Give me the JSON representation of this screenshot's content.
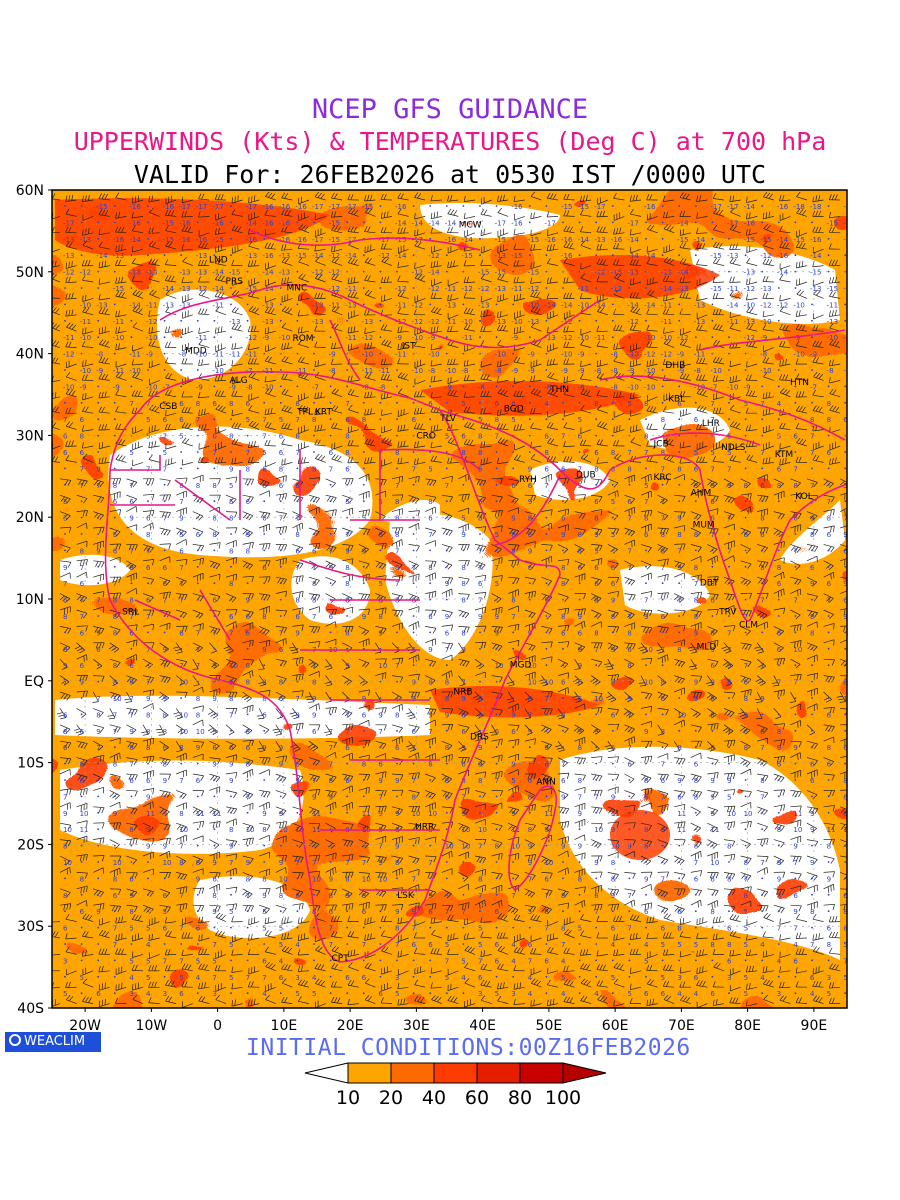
{
  "titles": {
    "line1": "NCEP GFS GUIDANCE",
    "line2": "UPPERWINDS (Kts) & TEMPERATURES (Deg C) at 700 hPa",
    "line3": "VALID For: 26FEB2026 at 0530 IST /0000 UTC"
  },
  "initial_conditions": "INITIAL CONDITIONS:00Z16FEB2026",
  "logo": {
    "text": "WEACLIM",
    "icon": "weaclim-logo-icon"
  },
  "colors": {
    "title1": "#8a2be2",
    "title2": "#e8178a",
    "border": "#e8178a",
    "barb": "#222222",
    "temp": "#2a3fd8"
  },
  "map": {
    "lat_labels": [
      "60N",
      "50N",
      "40N",
      "30N",
      "20N",
      "10N",
      "EQ",
      "10S",
      "20S",
      "30S",
      "40S"
    ],
    "lon_labels": [
      "20W",
      "10W",
      "0",
      "10E",
      "20E",
      "30E",
      "40E",
      "50E",
      "60E",
      "70E",
      "80E",
      "90E"
    ],
    "stations": [
      {
        "code": "MCW",
        "lon": 37.6,
        "lat": 55.8
      },
      {
        "code": "LND",
        "lon": -0.1,
        "lat": 51.5
      },
      {
        "code": "PRS",
        "lon": 2.4,
        "lat": 48.9
      },
      {
        "code": "MNC",
        "lon": 11.6,
        "lat": 48.1
      },
      {
        "code": "ROM",
        "lon": 12.5,
        "lat": 41.9
      },
      {
        "code": "MDD",
        "lon": -3.7,
        "lat": 40.4
      },
      {
        "code": "IST",
        "lon": 29.0,
        "lat": 41.0
      },
      {
        "code": "ALG",
        "lon": 3.0,
        "lat": 36.8
      },
      {
        "code": "CSB",
        "lon": -7.6,
        "lat": 33.6
      },
      {
        "code": "TPL",
        "lon": 13.2,
        "lat": 32.9
      },
      {
        "code": "KRT",
        "lon": 15.9,
        "lat": 32.9
      },
      {
        "code": "TLV",
        "lon": 34.8,
        "lat": 32.1
      },
      {
        "code": "THN",
        "lon": 51.4,
        "lat": 35.7
      },
      {
        "code": "BGD",
        "lon": 44.4,
        "lat": 33.3
      },
      {
        "code": "CRO",
        "lon": 31.2,
        "lat": 30.0
      },
      {
        "code": "DHB",
        "lon": 68.8,
        "lat": 38.6
      },
      {
        "code": "HTN",
        "lon": 87.6,
        "lat": 36.5
      },
      {
        "code": "KBL",
        "lon": 69.2,
        "lat": 34.5
      },
      {
        "code": "LHR",
        "lon": 74.3,
        "lat": 31.5
      },
      {
        "code": "JCB",
        "lon": 67.0,
        "lat": 29.0
      },
      {
        "code": "NDLS",
        "lon": 77.2,
        "lat": 28.6
      },
      {
        "code": "KTM",
        "lon": 85.3,
        "lat": 27.7
      },
      {
        "code": "RYH",
        "lon": 46.7,
        "lat": 24.7
      },
      {
        "code": "DUB",
        "lon": 55.3,
        "lat": 25.2
      },
      {
        "code": "KRC",
        "lon": 67.0,
        "lat": 24.9
      },
      {
        "code": "AHM",
        "lon": 72.6,
        "lat": 23.0
      },
      {
        "code": "KOL",
        "lon": 88.4,
        "lat": 22.6
      },
      {
        "code": "MUM",
        "lon": 72.9,
        "lat": 19.1
      },
      {
        "code": "DBT",
        "lon": 74.0,
        "lat": 12.0
      },
      {
        "code": "SRL",
        "lon": -13.2,
        "lat": 8.5
      },
      {
        "code": "TRV",
        "lon": 76.9,
        "lat": 8.5
      },
      {
        "code": "CLM",
        "lon": 79.9,
        "lat": 6.9
      },
      {
        "code": "MLD",
        "lon": 73.5,
        "lat": 4.2
      },
      {
        "code": "MGD",
        "lon": 45.3,
        "lat": 2.0
      },
      {
        "code": "NRB",
        "lon": 36.8,
        "lat": -1.3
      },
      {
        "code": "DRS",
        "lon": 39.3,
        "lat": -6.8
      },
      {
        "code": "ANN",
        "lon": 49.3,
        "lat": -12.3
      },
      {
        "code": "HRR",
        "lon": 31.0,
        "lat": -17.8
      },
      {
        "code": "LSK",
        "lon": 28.3,
        "lat": -26.2
      },
      {
        "code": "CPT",
        "lon": 18.4,
        "lat": -33.9
      }
    ]
  },
  "legend": {
    "labels": [
      "10",
      "20",
      "40",
      "60",
      "80",
      "100"
    ],
    "colors": [
      "#ffffff",
      "#ffa500",
      "#ff6a00",
      "#ff3c00",
      "#e61e00",
      "#c80000",
      "#b40000"
    ]
  }
}
